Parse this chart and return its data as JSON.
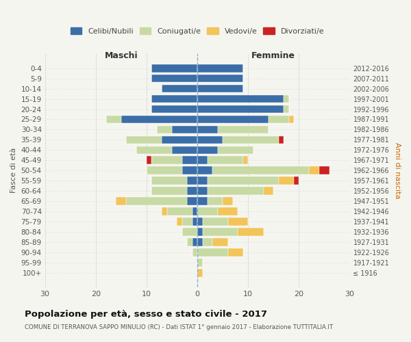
{
  "age_groups": [
    "0-4",
    "5-9",
    "10-14",
    "15-19",
    "20-24",
    "25-29",
    "30-34",
    "35-39",
    "40-44",
    "45-49",
    "50-54",
    "55-59",
    "60-64",
    "65-69",
    "70-74",
    "75-79",
    "80-84",
    "85-89",
    "90-94",
    "95-99",
    "100+"
  ],
  "birth_years": [
    "2012-2016",
    "2007-2011",
    "2002-2006",
    "1997-2001",
    "1992-1996",
    "1987-1991",
    "1982-1986",
    "1977-1981",
    "1972-1976",
    "1967-1971",
    "1962-1966",
    "1957-1961",
    "1952-1956",
    "1947-1951",
    "1942-1946",
    "1937-1941",
    "1932-1936",
    "1927-1931",
    "1922-1926",
    "1917-1921",
    "≤ 1916"
  ],
  "colors": {
    "celibi": "#3b6ea8",
    "coniugati": "#c8daa4",
    "vedovi": "#f2c45a",
    "divorziati": "#cc2222"
  },
  "maschi": {
    "celibi": [
      9,
      9,
      7,
      9,
      9,
      15,
      5,
      7,
      5,
      3,
      3,
      2,
      2,
      2,
      1,
      1,
      0,
      1,
      0,
      0,
      0
    ],
    "coniugati": [
      0,
      0,
      0,
      0,
      0,
      3,
      3,
      7,
      7,
      6,
      7,
      7,
      7,
      12,
      5,
      2,
      3,
      1,
      1,
      0,
      0
    ],
    "vedovi": [
      0,
      0,
      0,
      0,
      0,
      0,
      0,
      0,
      0,
      0,
      0,
      0,
      0,
      2,
      1,
      1,
      0,
      0,
      0,
      0,
      0
    ],
    "divorziati": [
      0,
      0,
      0,
      0,
      0,
      0,
      0,
      0,
      0,
      1,
      0,
      0,
      0,
      0,
      0,
      0,
      0,
      0,
      0,
      0,
      0
    ]
  },
  "femmine": {
    "celibi": [
      9,
      9,
      9,
      17,
      17,
      14,
      4,
      5,
      4,
      2,
      3,
      2,
      2,
      2,
      0,
      1,
      1,
      1,
      0,
      0,
      0
    ],
    "coniugati": [
      0,
      0,
      0,
      1,
      1,
      4,
      10,
      11,
      7,
      7,
      19,
      14,
      11,
      3,
      4,
      5,
      7,
      2,
      6,
      1,
      0
    ],
    "vedovi": [
      0,
      0,
      0,
      0,
      0,
      1,
      0,
      0,
      0,
      1,
      2,
      3,
      2,
      2,
      4,
      4,
      5,
      3,
      3,
      0,
      1
    ],
    "divorziati": [
      0,
      0,
      0,
      0,
      0,
      0,
      0,
      1,
      0,
      0,
      2,
      1,
      0,
      0,
      0,
      0,
      0,
      0,
      0,
      0,
      0
    ]
  },
  "xlim": 30,
  "title": "Popolazione per età, sesso e stato civile - 2017",
  "subtitle": "COMUNE DI TERRANOVA SAPPO MINULIO (RC) - Dati ISTAT 1° gennaio 2017 - Elaborazione TUTTITALIA.IT",
  "ylabel_left": "Fasce di età",
  "ylabel_right": "Anni di nascita",
  "xlabel_maschi": "Maschi",
  "xlabel_femmine": "Femmine",
  "legend_labels": [
    "Celibi/Nubili",
    "Coniugati/e",
    "Vedovi/e",
    "Divorziati/e"
  ],
  "background_color": "#f5f5f0"
}
